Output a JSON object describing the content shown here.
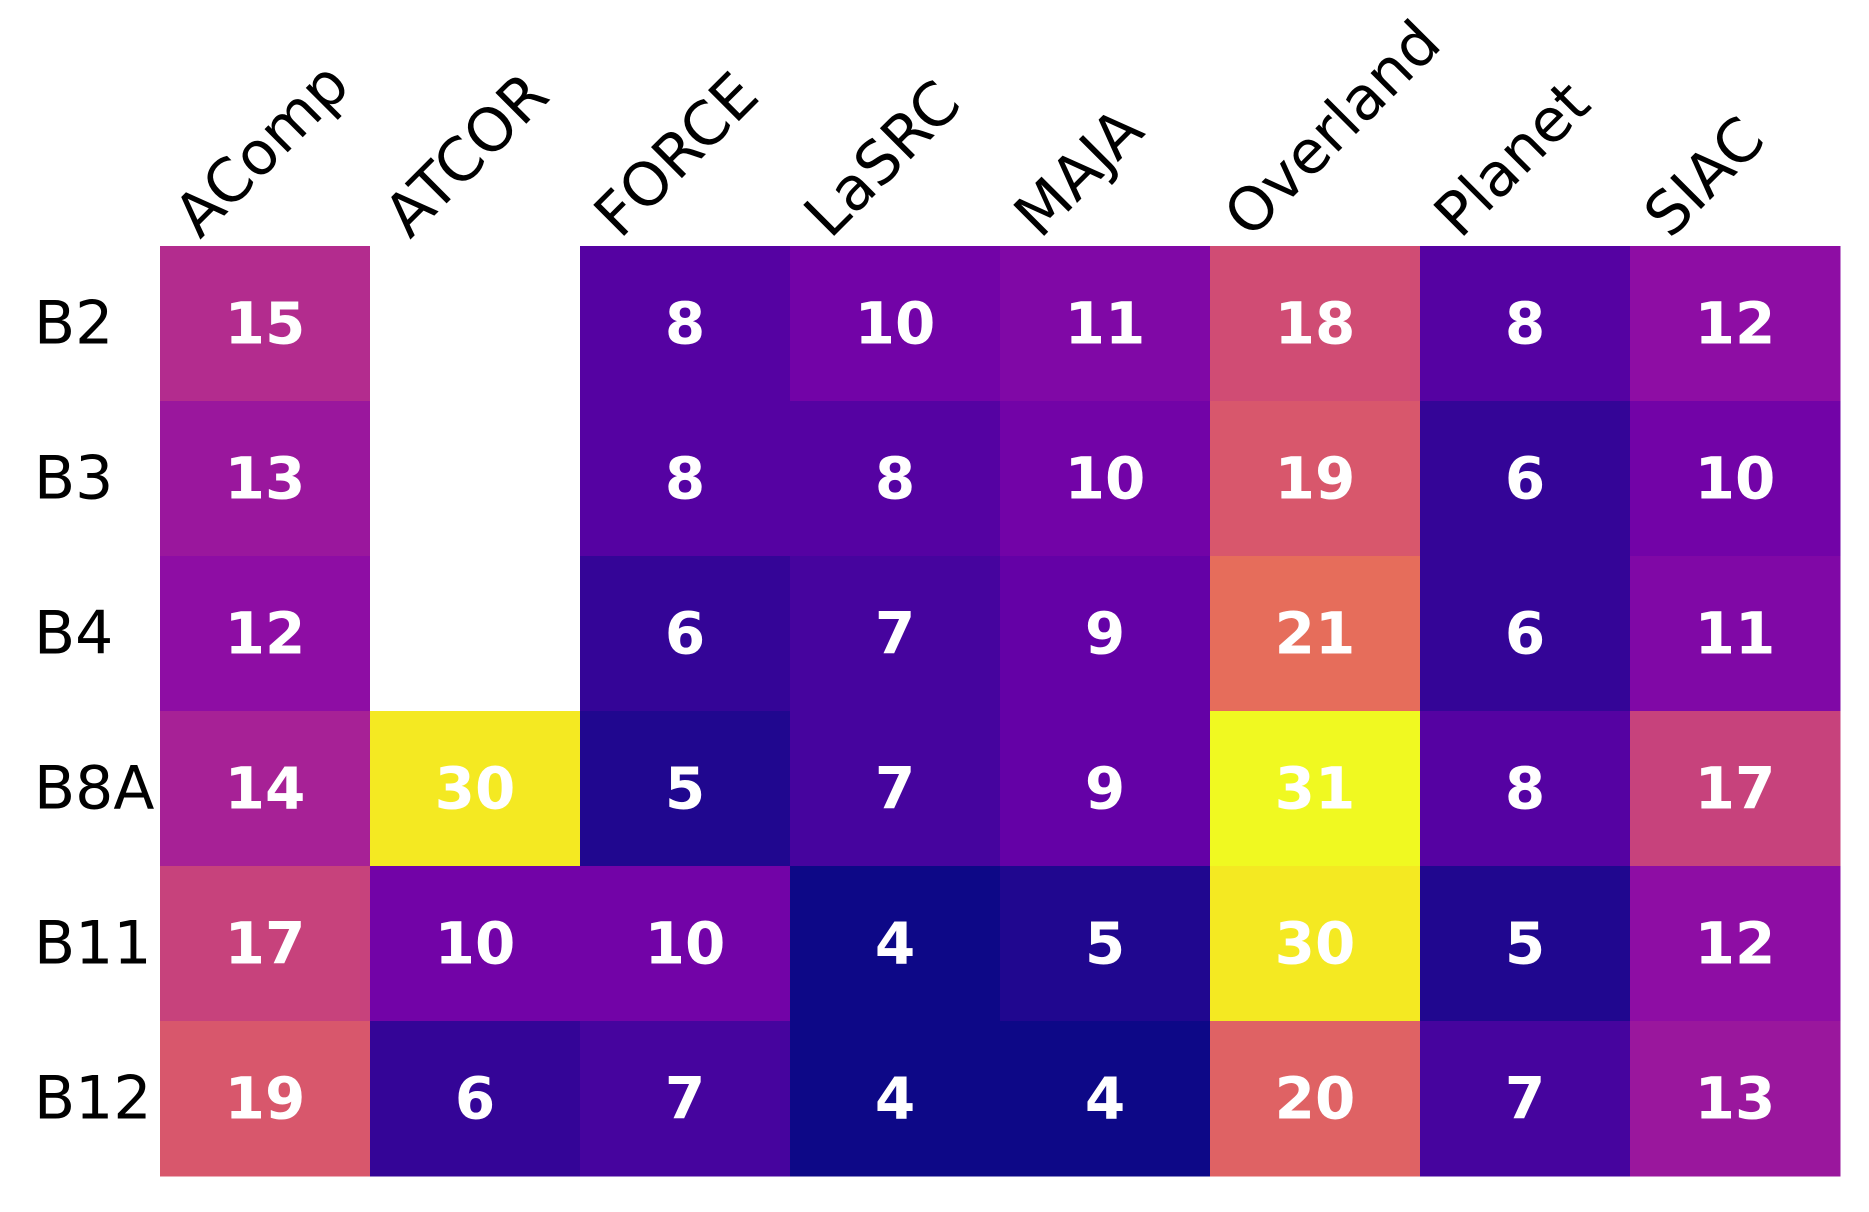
{
  "chart_data": {
    "type": "heatmap",
    "title": "",
    "xlabel": "",
    "ylabel": "",
    "columns": [
      "AComp",
      "ATCOR",
      "FORCE",
      "LaSRC",
      "MAJA",
      "Overland",
      "Planet",
      "SIAC"
    ],
    "rows": [
      "B2",
      "B3",
      "B4",
      "B8A",
      "B11",
      "B12"
    ],
    "values": [
      [
        15,
        null,
        8,
        10,
        11,
        18,
        8,
        12
      ],
      [
        13,
        null,
        8,
        8,
        10,
        19,
        6,
        10
      ],
      [
        12,
        null,
        6,
        7,
        9,
        21,
        6,
        11
      ],
      [
        14,
        30,
        5,
        7,
        9,
        31,
        8,
        17
      ],
      [
        17,
        10,
        10,
        4,
        5,
        30,
        5,
        12
      ],
      [
        19,
        6,
        7,
        4,
        4,
        20,
        7,
        13
      ]
    ],
    "colormap": "plasma",
    "color_range": [
      4,
      31
    ],
    "missing_color": "#ffffff",
    "annotation_color": "#ffffff",
    "colorbar": false
  }
}
